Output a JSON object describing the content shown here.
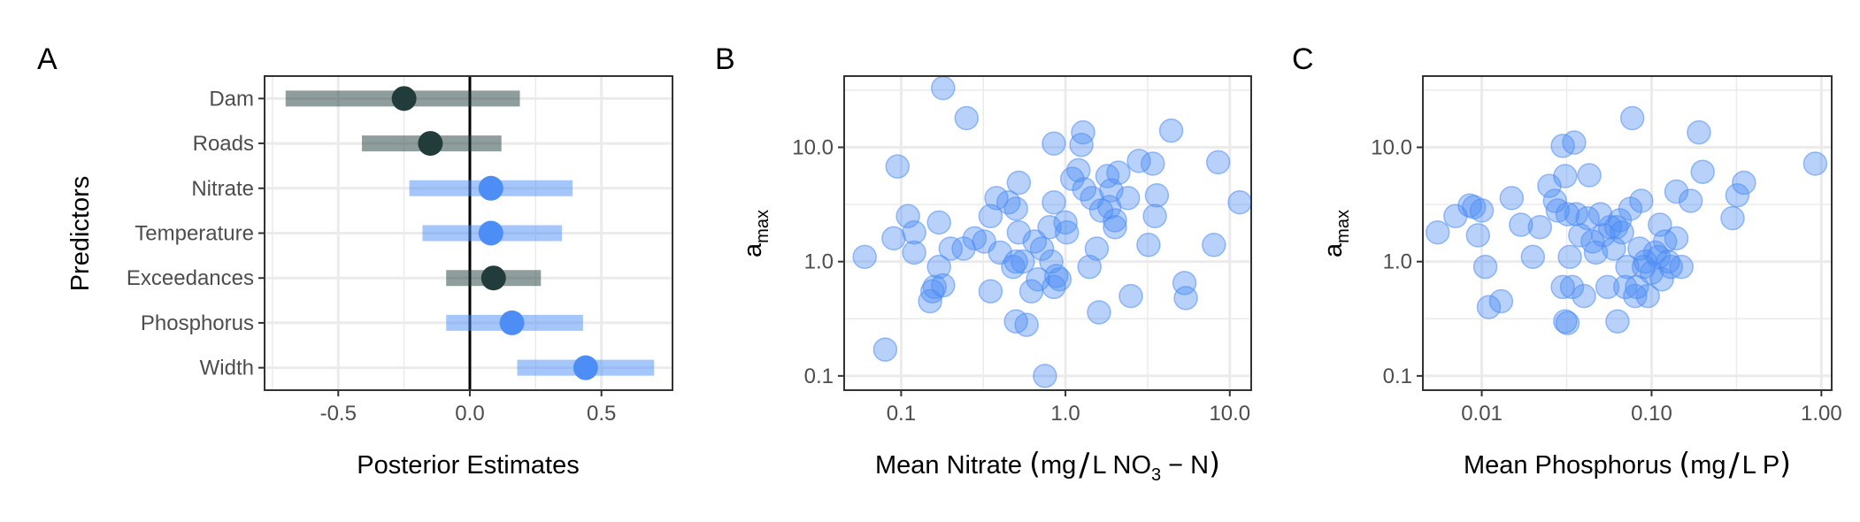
{
  "chart_data": [
    {
      "panel_label": "A",
      "type": "forest",
      "xlabel": "Posterior Estimates",
      "ylabel": "Predictors",
      "xlim": [
        -0.78,
        0.77
      ],
      "xticks": [
        -0.5,
        0.0,
        0.5
      ],
      "xtick_labels": [
        "-0.5",
        "0.0",
        "0.5"
      ],
      "reference_line": 0.0,
      "grid": true,
      "colors": {
        "credible": "#4c8df6",
        "not_credible": "#223c3b"
      },
      "predictors": [
        {
          "name": "Dam",
          "estimate": -0.25,
          "low": -0.7,
          "high": 0.19,
          "color": "#223c3b"
        },
        {
          "name": "Roads",
          "estimate": -0.15,
          "low": -0.41,
          "high": 0.12,
          "color": "#223c3b"
        },
        {
          "name": "Nitrate",
          "estimate": 0.08,
          "low": -0.23,
          "high": 0.39,
          "color": "#4c8df6"
        },
        {
          "name": "Temperature",
          "estimate": 0.08,
          "low": -0.18,
          "high": 0.35,
          "color": "#4c8df6"
        },
        {
          "name": "Exceedances",
          "estimate": 0.09,
          "low": -0.09,
          "high": 0.27,
          "color": "#223c3b"
        },
        {
          "name": "Phosphorus",
          "estimate": 0.16,
          "low": -0.09,
          "high": 0.43,
          "color": "#4c8df6"
        },
        {
          "name": "Width",
          "estimate": 0.44,
          "low": 0.18,
          "high": 0.7,
          "color": "#4c8df6"
        }
      ]
    },
    {
      "panel_label": "B",
      "type": "scatter",
      "x_scale": "log",
      "y_scale": "log",
      "xlim": [
        0.045,
        13.5
      ],
      "ylim": [
        0.075,
        42
      ],
      "xticks": [
        0.1,
        1.0,
        10.0
      ],
      "xtick_labels": [
        "0.1",
        "1.0",
        "10.0"
      ],
      "yticks": [
        0.1,
        1.0,
        10.0
      ],
      "ytick_labels": [
        "0.1",
        "1.0",
        "10.0"
      ],
      "xlabel": {
        "pre": "Mean Nitrate ",
        "lparen": "(",
        "unit1": "mg",
        "slash": "/",
        "unit2": "L NO",
        "sub": "3",
        "tail": " − N",
        "rparen": ")"
      },
      "ylabel": {
        "base": "a",
        "sub": "max"
      },
      "grid": true,
      "color": "#4c8df6",
      "points": [
        [
          0.18,
          33
        ],
        [
          0.25,
          18
        ],
        [
          0.095,
          6.8
        ],
        [
          0.06,
          1.1
        ],
        [
          0.08,
          0.17
        ],
        [
          0.11,
          2.5
        ],
        [
          0.12,
          1.8
        ],
        [
          0.09,
          1.6
        ],
        [
          0.12,
          1.2
        ],
        [
          0.15,
          0.45
        ],
        [
          0.155,
          0.55
        ],
        [
          0.16,
          0.6
        ],
        [
          0.17,
          0.9
        ],
        [
          0.18,
          0.62
        ],
        [
          0.17,
          2.2
        ],
        [
          0.2,
          1.3
        ],
        [
          0.24,
          1.3
        ],
        [
          0.28,
          1.6
        ],
        [
          0.32,
          1.5
        ],
        [
          0.35,
          2.5
        ],
        [
          0.38,
          3.6
        ],
        [
          0.4,
          1.2
        ],
        [
          0.35,
          0.55
        ],
        [
          0.45,
          3.3
        ],
        [
          0.5,
          2.9
        ],
        [
          0.52,
          4.9
        ],
        [
          0.48,
          0.9
        ],
        [
          0.5,
          1.0
        ],
        [
          0.55,
          1.0
        ],
        [
          0.52,
          1.8
        ],
        [
          0.58,
          0.28
        ],
        [
          0.5,
          0.3
        ],
        [
          0.62,
          0.55
        ],
        [
          0.65,
          1.5
        ],
        [
          0.68,
          0.7
        ],
        [
          0.72,
          1.3
        ],
        [
          0.75,
          0.1
        ],
        [
          0.82,
          1.0
        ],
        [
          0.85,
          0.6
        ],
        [
          0.88,
          0.75
        ],
        [
          0.8,
          2.0
        ],
        [
          0.85,
          3.3
        ],
        [
          0.92,
          0.7
        ],
        [
          0.85,
          10.8
        ],
        [
          1.0,
          2.2
        ],
        [
          1.02,
          1.8
        ],
        [
          1.1,
          5.3
        ],
        [
          1.2,
          6.3
        ],
        [
          1.25,
          10.5
        ],
        [
          1.28,
          13.5
        ],
        [
          1.3,
          4.3
        ],
        [
          1.45,
          3.6
        ],
        [
          1.55,
          1.3
        ],
        [
          1.6,
          0.36
        ],
        [
          1.4,
          0.9
        ],
        [
          1.65,
          2.8
        ],
        [
          1.8,
          5.6
        ],
        [
          1.85,
          3.0
        ],
        [
          1.9,
          4.2
        ],
        [
          2.0,
          2.3
        ],
        [
          2.1,
          6.0
        ],
        [
          2.0,
          2.0
        ],
        [
          2.4,
          3.6
        ],
        [
          2.5,
          0.5
        ],
        [
          2.8,
          7.6
        ],
        [
          3.2,
          1.4
        ],
        [
          3.4,
          7.2
        ],
        [
          3.5,
          2.5
        ],
        [
          3.6,
          3.8
        ],
        [
          4.4,
          14.0
        ],
        [
          5.3,
          0.65
        ],
        [
          5.4,
          0.48
        ],
        [
          8.0,
          1.4
        ],
        [
          8.5,
          7.4
        ],
        [
          11.5,
          3.3
        ]
      ]
    },
    {
      "panel_label": "C",
      "type": "scatter",
      "x_scale": "log",
      "y_scale": "log",
      "xlim": [
        0.0045,
        1.15
      ],
      "ylim": [
        0.075,
        42
      ],
      "xticks": [
        0.01,
        0.1,
        1.0
      ],
      "xtick_labels": [
        "0.01",
        "0.10",
        "1.00"
      ],
      "yticks": [
        0.1,
        1.0,
        10.0
      ],
      "ytick_labels": [
        "0.1",
        "1.0",
        "10.0"
      ],
      "xlabel": {
        "pre": "Mean Phosphorus ",
        "lparen": "(",
        "unit1": "mg",
        "slash": "/",
        "unit2": "L P",
        "rparen": ")"
      },
      "ylabel": {
        "base": "a",
        "sub": "max"
      },
      "grid": true,
      "color": "#4c8df6",
      "points": [
        [
          0.0055,
          1.8
        ],
        [
          0.007,
          2.5
        ],
        [
          0.0085,
          3.1
        ],
        [
          0.009,
          3.0
        ],
        [
          0.0095,
          1.7
        ],
        [
          0.01,
          2.8
        ],
        [
          0.0105,
          0.9
        ],
        [
          0.011,
          0.4
        ],
        [
          0.013,
          0.45
        ],
        [
          0.015,
          3.6
        ],
        [
          0.017,
          2.1
        ],
        [
          0.02,
          1.1
        ],
        [
          0.022,
          2.0
        ],
        [
          0.025,
          4.6
        ],
        [
          0.027,
          3.4
        ],
        [
          0.028,
          2.8
        ],
        [
          0.03,
          0.6
        ],
        [
          0.031,
          0.3
        ],
        [
          0.032,
          0.29
        ],
        [
          0.03,
          10.3
        ],
        [
          0.031,
          5.6
        ],
        [
          0.033,
          1.1
        ],
        [
          0.032,
          2.6
        ],
        [
          0.034,
          0.6
        ],
        [
          0.035,
          11.0
        ],
        [
          0.036,
          2.6
        ],
        [
          0.038,
          1.7
        ],
        [
          0.04,
          0.5
        ],
        [
          0.042,
          2.4
        ],
        [
          0.043,
          5.7
        ],
        [
          0.045,
          1.5
        ],
        [
          0.047,
          1.2
        ],
        [
          0.05,
          2.6
        ],
        [
          0.052,
          1.7
        ],
        [
          0.055,
          0.6
        ],
        [
          0.057,
          2.0
        ],
        [
          0.06,
          1.3
        ],
        [
          0.062,
          2.0
        ],
        [
          0.063,
          0.3
        ],
        [
          0.065,
          2.3
        ],
        [
          0.067,
          1.8
        ],
        [
          0.07,
          0.6
        ],
        [
          0.072,
          0.9
        ],
        [
          0.075,
          2.9
        ],
        [
          0.077,
          18.0
        ],
        [
          0.08,
          0.5
        ],
        [
          0.082,
          0.6
        ],
        [
          0.085,
          1.3
        ],
        [
          0.087,
          3.4
        ],
        [
          0.09,
          0.9
        ],
        [
          0.092,
          1.0
        ],
        [
          0.095,
          0.5
        ],
        [
          0.1,
          0.8
        ],
        [
          0.105,
          1.2
        ],
        [
          0.11,
          1.1
        ],
        [
          0.112,
          2.1
        ],
        [
          0.115,
          0.7
        ],
        [
          0.12,
          1.5
        ],
        [
          0.125,
          1.0
        ],
        [
          0.13,
          0.9
        ],
        [
          0.14,
          1.6
        ],
        [
          0.14,
          4.1
        ],
        [
          0.15,
          0.9
        ],
        [
          0.17,
          3.4
        ],
        [
          0.19,
          13.5
        ],
        [
          0.2,
          6.1
        ],
        [
          0.3,
          2.4
        ],
        [
          0.32,
          3.8
        ],
        [
          0.35,
          4.9
        ],
        [
          0.92,
          7.2
        ]
      ]
    }
  ]
}
